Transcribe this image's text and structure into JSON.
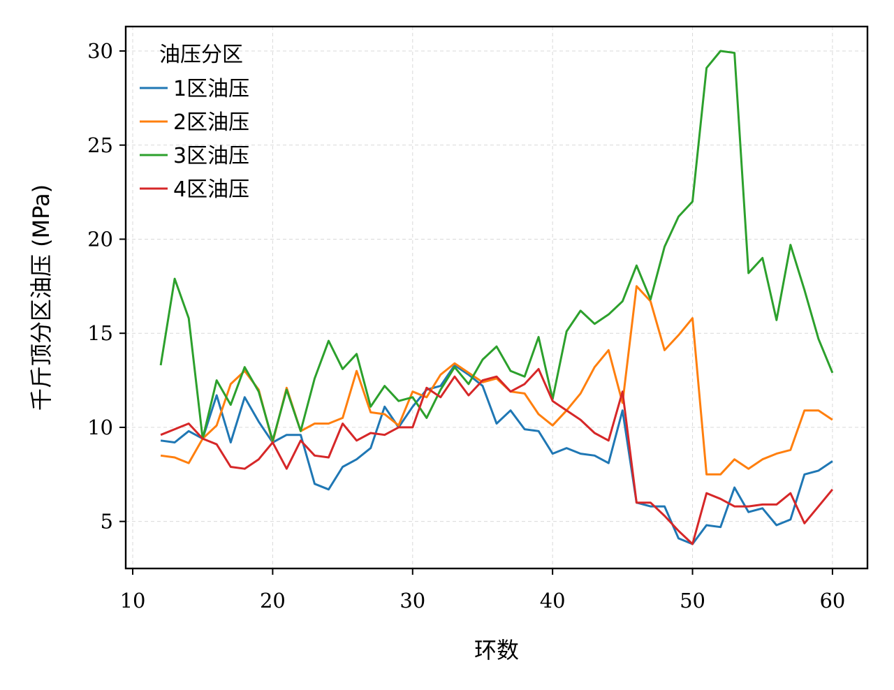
{
  "chart_data": {
    "type": "line",
    "title": "",
    "xlabel": "环数",
    "ylabel": "千斤顶分区油压 (MPa)",
    "xlim": [
      9.5,
      62.5
    ],
    "ylim": [
      2.5,
      31.3
    ],
    "xticks": [
      10,
      20,
      30,
      40,
      50,
      60
    ],
    "yticks": [
      5,
      10,
      15,
      20,
      25,
      30
    ],
    "grid": true,
    "legend": {
      "title": "油压分区",
      "placement": "top-left"
    },
    "x": [
      12,
      13,
      14,
      15,
      16,
      17,
      18,
      19,
      20,
      21,
      22,
      23,
      24,
      25,
      26,
      27,
      28,
      29,
      30,
      31,
      32,
      33,
      34,
      35,
      36,
      37,
      38,
      39,
      40,
      41,
      42,
      43,
      44,
      45,
      46,
      47,
      48,
      49,
      50,
      51,
      52,
      53,
      54,
      55,
      56,
      57,
      58,
      59,
      60
    ],
    "series": [
      {
        "name": "1区油压",
        "color": "#1f77b4",
        "values": [
          9.3,
          9.2,
          9.8,
          9.4,
          11.7,
          9.2,
          11.6,
          10.3,
          9.2,
          9.6,
          9.6,
          7.0,
          6.7,
          7.9,
          8.3,
          8.9,
          11.1,
          10.0,
          11.1,
          12.0,
          12.2,
          13.3,
          12.8,
          12.2,
          10.2,
          10.9,
          9.9,
          9.8,
          8.6,
          8.9,
          8.6,
          8.5,
          8.1,
          10.9,
          6.0,
          5.8,
          5.8,
          4.1,
          3.8,
          4.8,
          4.7,
          6.8,
          5.5,
          5.7,
          4.8,
          5.1,
          7.5,
          7.7,
          8.2
        ]
      },
      {
        "name": "2区油压",
        "color": "#ff7f0e",
        "values": [
          8.5,
          8.4,
          8.1,
          9.4,
          10.1,
          12.3,
          13.0,
          12.0,
          9.2,
          12.1,
          9.8,
          10.2,
          10.2,
          10.5,
          13.0,
          10.8,
          10.7,
          10.1,
          11.9,
          11.6,
          12.8,
          13.4,
          12.9,
          12.4,
          12.6,
          11.9,
          11.8,
          10.7,
          10.1,
          10.9,
          11.8,
          13.2,
          14.1,
          11.3,
          17.5,
          16.7,
          14.1,
          14.9,
          15.8,
          7.5,
          7.5,
          8.3,
          7.8,
          8.3,
          8.6,
          8.8,
          10.9,
          10.9,
          10.4
        ]
      },
      {
        "name": "3区油压",
        "color": "#2ca02c",
        "values": [
          13.3,
          17.9,
          15.8,
          9.4,
          12.5,
          11.2,
          13.2,
          11.9,
          9.3,
          12.0,
          9.8,
          12.6,
          14.6,
          13.1,
          13.9,
          11.1,
          12.2,
          11.4,
          11.6,
          10.5,
          12.0,
          13.2,
          12.3,
          13.6,
          14.3,
          13.0,
          12.7,
          14.8,
          11.5,
          15.1,
          16.2,
          15.5,
          16.0,
          16.7,
          18.6,
          16.8,
          19.6,
          21.2,
          22.0,
          29.1,
          30.0,
          29.9,
          18.2,
          19.0,
          15.7,
          19.7,
          17.3,
          14.7,
          12.9
        ]
      },
      {
        "name": "4区油压",
        "color": "#d62728",
        "values": [
          9.6,
          9.9,
          10.2,
          9.4,
          9.1,
          7.9,
          7.8,
          8.3,
          9.2,
          7.8,
          9.3,
          8.5,
          8.4,
          10.2,
          9.3,
          9.7,
          9.6,
          10.0,
          10.0,
          12.1,
          11.6,
          12.7,
          11.7,
          12.5,
          12.7,
          11.9,
          12.3,
          13.1,
          11.4,
          10.9,
          10.4,
          9.7,
          9.3,
          11.9,
          6.0,
          6.0,
          5.3,
          4.5,
          3.8,
          6.5,
          6.2,
          5.8,
          5.8,
          5.9,
          5.9,
          6.5,
          4.9,
          5.8,
          6.7
        ]
      }
    ]
  }
}
